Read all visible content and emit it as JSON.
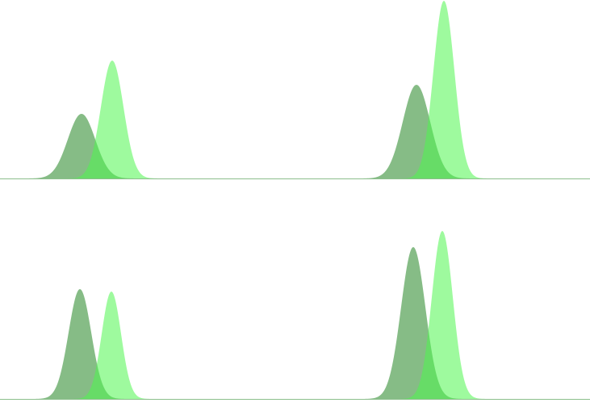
{
  "chart_data": [
    {
      "type": "area",
      "title": "",
      "xlabel": "",
      "ylabel": "",
      "xlim": [
        0,
        731
      ],
      "ylim": [
        0,
        225
      ],
      "grid": false,
      "legend": "none",
      "series": [
        {
          "color": "#2e8b2e",
          "opacity": 0.58,
          "peaks": [
            {
              "center": 101,
              "height": 80,
              "width": 17
            },
            {
              "center": 516,
              "height": 116,
              "width": 17
            }
          ]
        },
        {
          "color": "#4ef54e",
          "opacity": 0.55,
          "peaks": [
            {
              "center": 139,
              "height": 146,
              "width": 14
            },
            {
              "center": 550,
              "height": 220,
              "width": 13
            }
          ]
        }
      ]
    },
    {
      "type": "area",
      "title": "",
      "xlabel": "",
      "ylabel": "",
      "xlim": [
        0,
        731
      ],
      "ylim": [
        0,
        225
      ],
      "grid": false,
      "legend": "none",
      "series": [
        {
          "color": "#2e8b2e",
          "opacity": 0.58,
          "peaks": [
            {
              "center": 99,
              "height": 136,
              "width": 14
            },
            {
              "center": 512,
              "height": 188,
              "width": 15
            }
          ]
        },
        {
          "color": "#4ef54e",
          "opacity": 0.55,
          "peaks": [
            {
              "center": 138,
              "height": 133,
              "width": 12
            },
            {
              "center": 548,
              "height": 208,
              "width": 13
            }
          ]
        }
      ]
    }
  ]
}
